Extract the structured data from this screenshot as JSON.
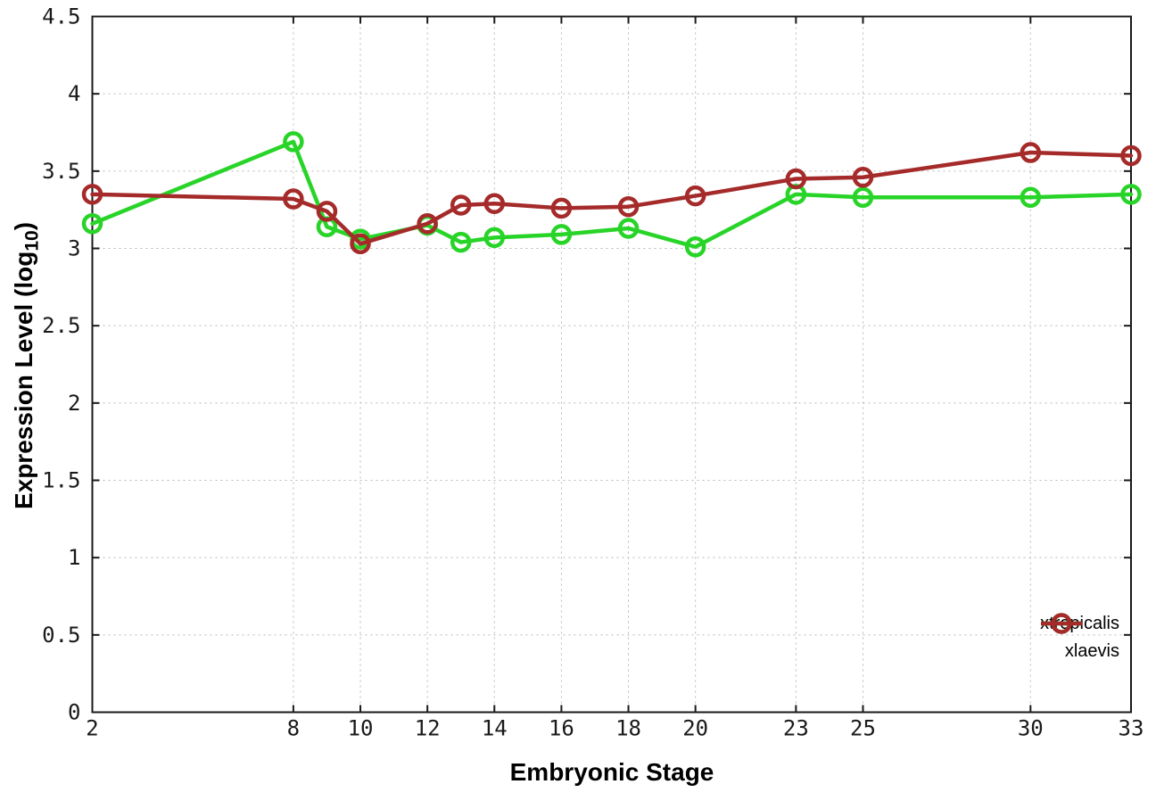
{
  "chart_data": {
    "type": "line",
    "title": "",
    "xlabel": "Embryonic Stage",
    "ylabel": {
      "prefix": "Expression Level (log",
      "subscript": "10",
      "suffix": ")"
    },
    "xlim": [
      2,
      33
    ],
    "ylim": [
      0,
      4.5
    ],
    "xticks": [
      2,
      8,
      10,
      12,
      14,
      16,
      18,
      20,
      23,
      25,
      30,
      33
    ],
    "yticks": [
      0,
      0.5,
      1,
      1.5,
      2,
      2.5,
      3,
      3.5,
      4,
      4.5
    ],
    "grid": true,
    "legend_position": "inside-bottom-right",
    "x": [
      2,
      8,
      9,
      10,
      12,
      13,
      14,
      16,
      18,
      20,
      23,
      25,
      30,
      33
    ],
    "series": [
      {
        "name": "xtropicalis",
        "color": "#27d427",
        "marker": "open-circle",
        "values": [
          3.16,
          3.69,
          3.14,
          3.06,
          3.15,
          3.04,
          3.07,
          3.09,
          3.13,
          3.01,
          3.35,
          3.33,
          3.33,
          3.35
        ]
      },
      {
        "name": "xlaevis",
        "color": "#a52a2a",
        "marker": "open-circle",
        "values": [
          3.35,
          3.32,
          3.24,
          3.03,
          3.16,
          3.28,
          3.29,
          3.26,
          3.27,
          3.34,
          3.45,
          3.46,
          3.62,
          3.6
        ]
      }
    ],
    "axis_color": "#1a1a1a",
    "grid_color": "#b8b8b8",
    "background": "#ffffff"
  }
}
